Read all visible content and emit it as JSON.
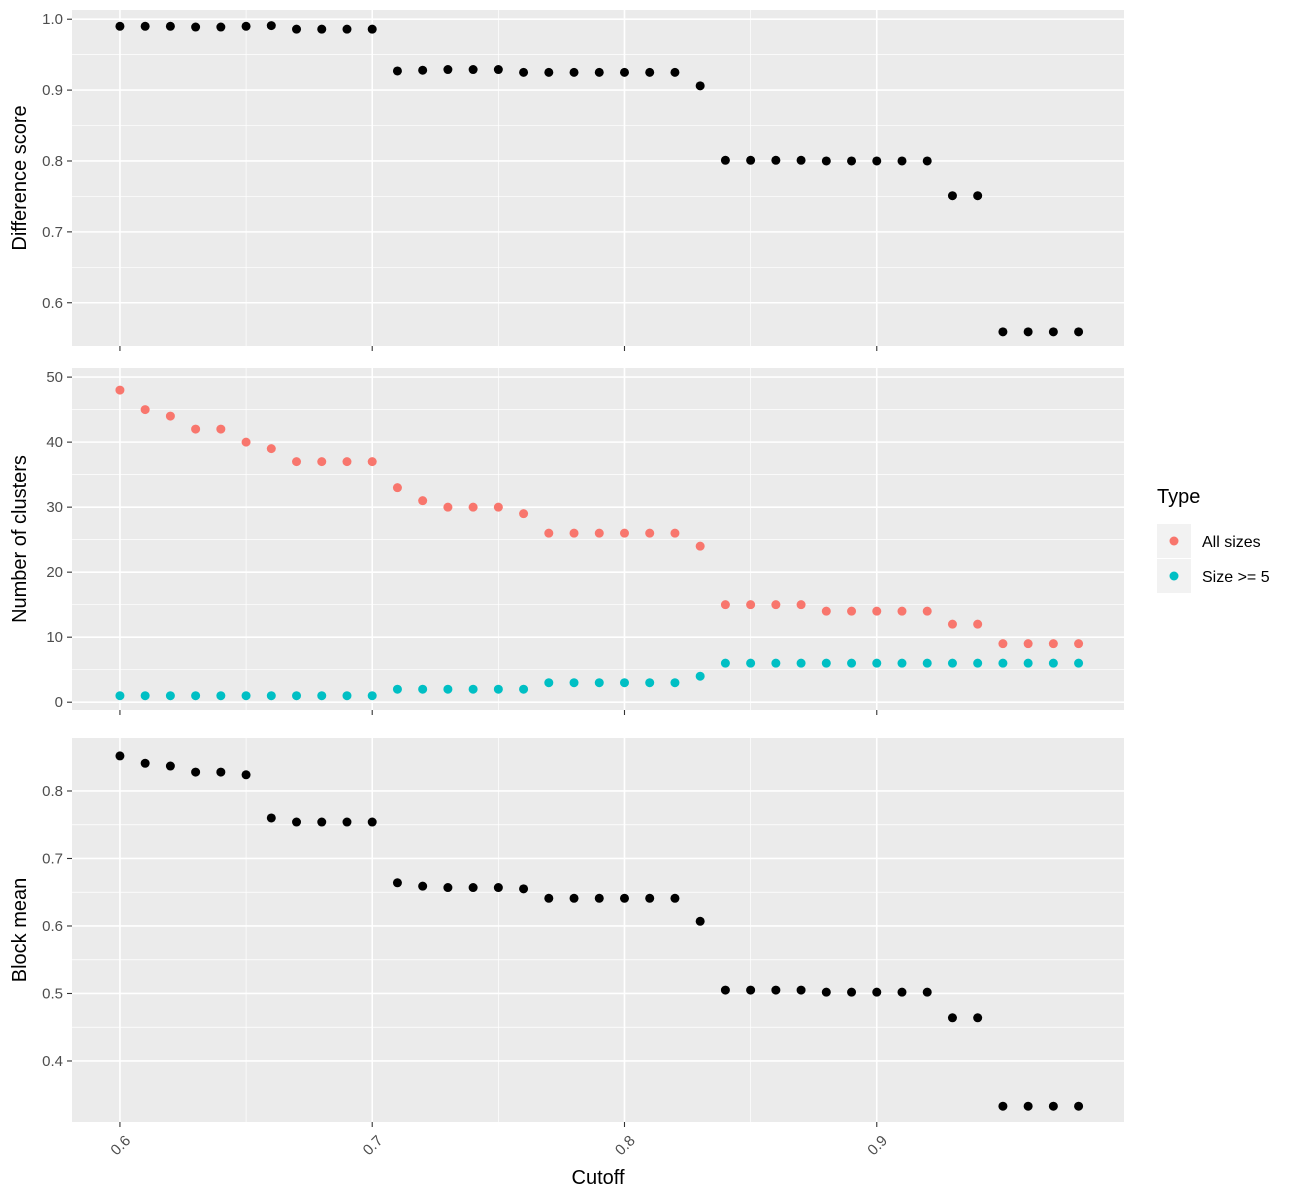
{
  "chart_data": [
    {
      "type": "scatter",
      "y_label": "Difference score",
      "color": "#000000",
      "grid": true,
      "x": [
        0.6,
        0.61,
        0.62,
        0.63,
        0.64,
        0.65,
        0.66,
        0.67,
        0.68,
        0.69,
        0.7,
        0.71,
        0.72,
        0.73,
        0.74,
        0.75,
        0.76,
        0.77,
        0.78,
        0.79,
        0.8,
        0.81,
        0.82,
        0.83,
        0.84,
        0.85,
        0.86,
        0.87,
        0.88,
        0.89,
        0.9,
        0.91,
        0.92,
        0.93,
        0.94,
        0.95,
        0.96,
        0.97,
        0.98
      ],
      "values": [
        0.99,
        0.99,
        0.99,
        0.989,
        0.989,
        0.99,
        0.991,
        0.986,
        0.986,
        0.986,
        0.986,
        0.927,
        0.928,
        0.929,
        0.929,
        0.929,
        0.925,
        0.925,
        0.925,
        0.925,
        0.925,
        0.925,
        0.925,
        0.906,
        0.801,
        0.801,
        0.801,
        0.801,
        0.8,
        0.8,
        0.8,
        0.8,
        0.8,
        0.751,
        0.751,
        0.559,
        0.559,
        0.559,
        0.559
      ],
      "xlim": [
        0.581,
        0.998
      ],
      "xticks": [
        0.6,
        0.7,
        0.8,
        0.9
      ],
      "ylim": [
        0.539,
        1.013
      ],
      "yticks": [
        0.6,
        0.7,
        0.8,
        0.9,
        {
          "value": 1,
          "label": "1.0"
        }
      ]
    },
    {
      "type": "scatter",
      "y_label": "Number of clusters",
      "legend_title": "Type",
      "grid": true,
      "x": [
        0.6,
        0.61,
        0.62,
        0.63,
        0.64,
        0.65,
        0.66,
        0.67,
        0.68,
        0.69,
        0.7,
        0.71,
        0.72,
        0.73,
        0.74,
        0.75,
        0.76,
        0.77,
        0.78,
        0.79,
        0.8,
        0.81,
        0.82,
        0.83,
        0.84,
        0.85,
        0.86,
        0.87,
        0.88,
        0.89,
        0.9,
        0.91,
        0.92,
        0.93,
        0.94,
        0.95,
        0.96,
        0.97,
        0.98
      ],
      "series": [
        {
          "name": "All sizes",
          "color": "#F8766D",
          "values": [
            48,
            45,
            44,
            42,
            42,
            40,
            39,
            37,
            37,
            37,
            37,
            33,
            31,
            30,
            30,
            30,
            29,
            26,
            26,
            26,
            26,
            26,
            26,
            24,
            15,
            15,
            15,
            15,
            14,
            14,
            14,
            14,
            14,
            12,
            12,
            9,
            9,
            9,
            9
          ]
        },
        {
          "name": "Size >= 5",
          "color": "#00BFC4",
          "values": [
            1,
            1,
            1,
            1,
            1,
            1,
            1,
            1,
            1,
            1,
            1,
            2,
            2,
            2,
            2,
            2,
            2,
            3,
            3,
            3,
            3,
            3,
            3,
            4,
            6,
            6,
            6,
            6,
            6,
            6,
            6,
            6,
            6,
            6,
            6,
            6,
            6,
            6,
            6
          ]
        }
      ],
      "xlim": [
        0.581,
        0.998
      ],
      "xticks": [
        0.6,
        0.7,
        0.8,
        0.9
      ],
      "ylim": [
        -1.2,
        51.4
      ],
      "yticks": [
        0,
        10,
        20,
        30,
        40,
        50
      ]
    },
    {
      "type": "scatter",
      "y_label": "Block mean",
      "x_label": "Cutoff",
      "color": "#000000",
      "grid": true,
      "x": [
        0.6,
        0.61,
        0.62,
        0.63,
        0.64,
        0.65,
        0.66,
        0.67,
        0.68,
        0.69,
        0.7,
        0.71,
        0.72,
        0.73,
        0.74,
        0.75,
        0.76,
        0.77,
        0.78,
        0.79,
        0.8,
        0.81,
        0.82,
        0.83,
        0.84,
        0.85,
        0.86,
        0.87,
        0.88,
        0.89,
        0.9,
        0.91,
        0.92,
        0.93,
        0.94,
        0.95,
        0.96,
        0.97,
        0.98
      ],
      "values": [
        0.852,
        0.841,
        0.837,
        0.828,
        0.828,
        0.824,
        0.76,
        0.754,
        0.754,
        0.754,
        0.754,
        0.664,
        0.659,
        0.657,
        0.657,
        0.657,
        0.655,
        0.641,
        0.641,
        0.641,
        0.641,
        0.641,
        0.641,
        0.607,
        0.505,
        0.505,
        0.505,
        0.505,
        0.502,
        0.502,
        0.502,
        0.502,
        0.502,
        0.464,
        0.464,
        0.333,
        0.333,
        0.333,
        0.333
      ],
      "xlim": [
        0.581,
        0.998
      ],
      "xticks": [
        0.6,
        0.7,
        0.8,
        0.9
      ],
      "ylim": [
        0.3096,
        0.8785
      ],
      "yticks": [
        0.4,
        0.5,
        0.6,
        0.7,
        0.8
      ]
    }
  ]
}
